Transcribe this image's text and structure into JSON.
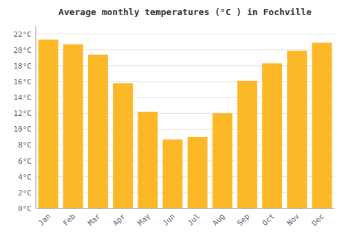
{
  "chart_data": {
    "type": "bar",
    "title": "Average monthly temperatures (°C ) in Fochville",
    "categories": [
      "Jan",
      "Feb",
      "Mar",
      "Apr",
      "May",
      "Jun",
      "Jul",
      "Aug",
      "Sep",
      "Oct",
      "Nov",
      "Dec"
    ],
    "values": [
      21.3,
      20.7,
      19.4,
      15.8,
      12.2,
      8.7,
      9.0,
      12.0,
      16.1,
      18.3,
      19.9,
      20.9
    ],
    "color": "#FDB827",
    "ylim": [
      0,
      23
    ],
    "yticks": [
      {
        "value": 0,
        "label": "0°C"
      },
      {
        "value": 2,
        "label": "2°C"
      },
      {
        "value": 4,
        "label": "4°C"
      },
      {
        "value": 6,
        "label": "6°C"
      },
      {
        "value": 8,
        "label": "8°C"
      },
      {
        "value": 10,
        "label": "10°C"
      },
      {
        "value": 12,
        "label": "12°C"
      },
      {
        "value": 14,
        "label": "14°C"
      },
      {
        "value": 16,
        "label": "16°C"
      },
      {
        "value": 18,
        "label": "18°C"
      },
      {
        "value": 20,
        "label": "20°C"
      },
      {
        "value": 22,
        "label": "22°C"
      }
    ],
    "grid": true
  }
}
